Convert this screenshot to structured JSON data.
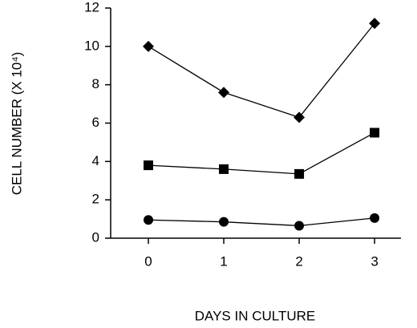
{
  "chart_data": {
    "type": "line",
    "x_label": "DAYS IN CULTURE",
    "y_label": "CELL NUMBER (X 10⁴)",
    "x": [
      0,
      1,
      2,
      3
    ],
    "series": [
      {
        "color": "#000000",
        "marker": "diamond",
        "values": [
          10,
          7.6,
          6.3,
          11.2
        ]
      },
      {
        "color": "#000000",
        "marker": "square",
        "values": [
          3.8,
          3.6,
          3.35,
          5.5
        ]
      },
      {
        "color": "#000000",
        "marker": "circle",
        "values": [
          0.95,
          0.85,
          0.65,
          1.05
        ]
      }
    ],
    "xlim": [
      -0.5,
      3.35
    ],
    "xticks": [
      0,
      1,
      2,
      3
    ],
    "ylim": [
      0,
      12
    ],
    "yticks": [
      0,
      2,
      4,
      6,
      8,
      10,
      12
    ],
    "grid": false
  }
}
